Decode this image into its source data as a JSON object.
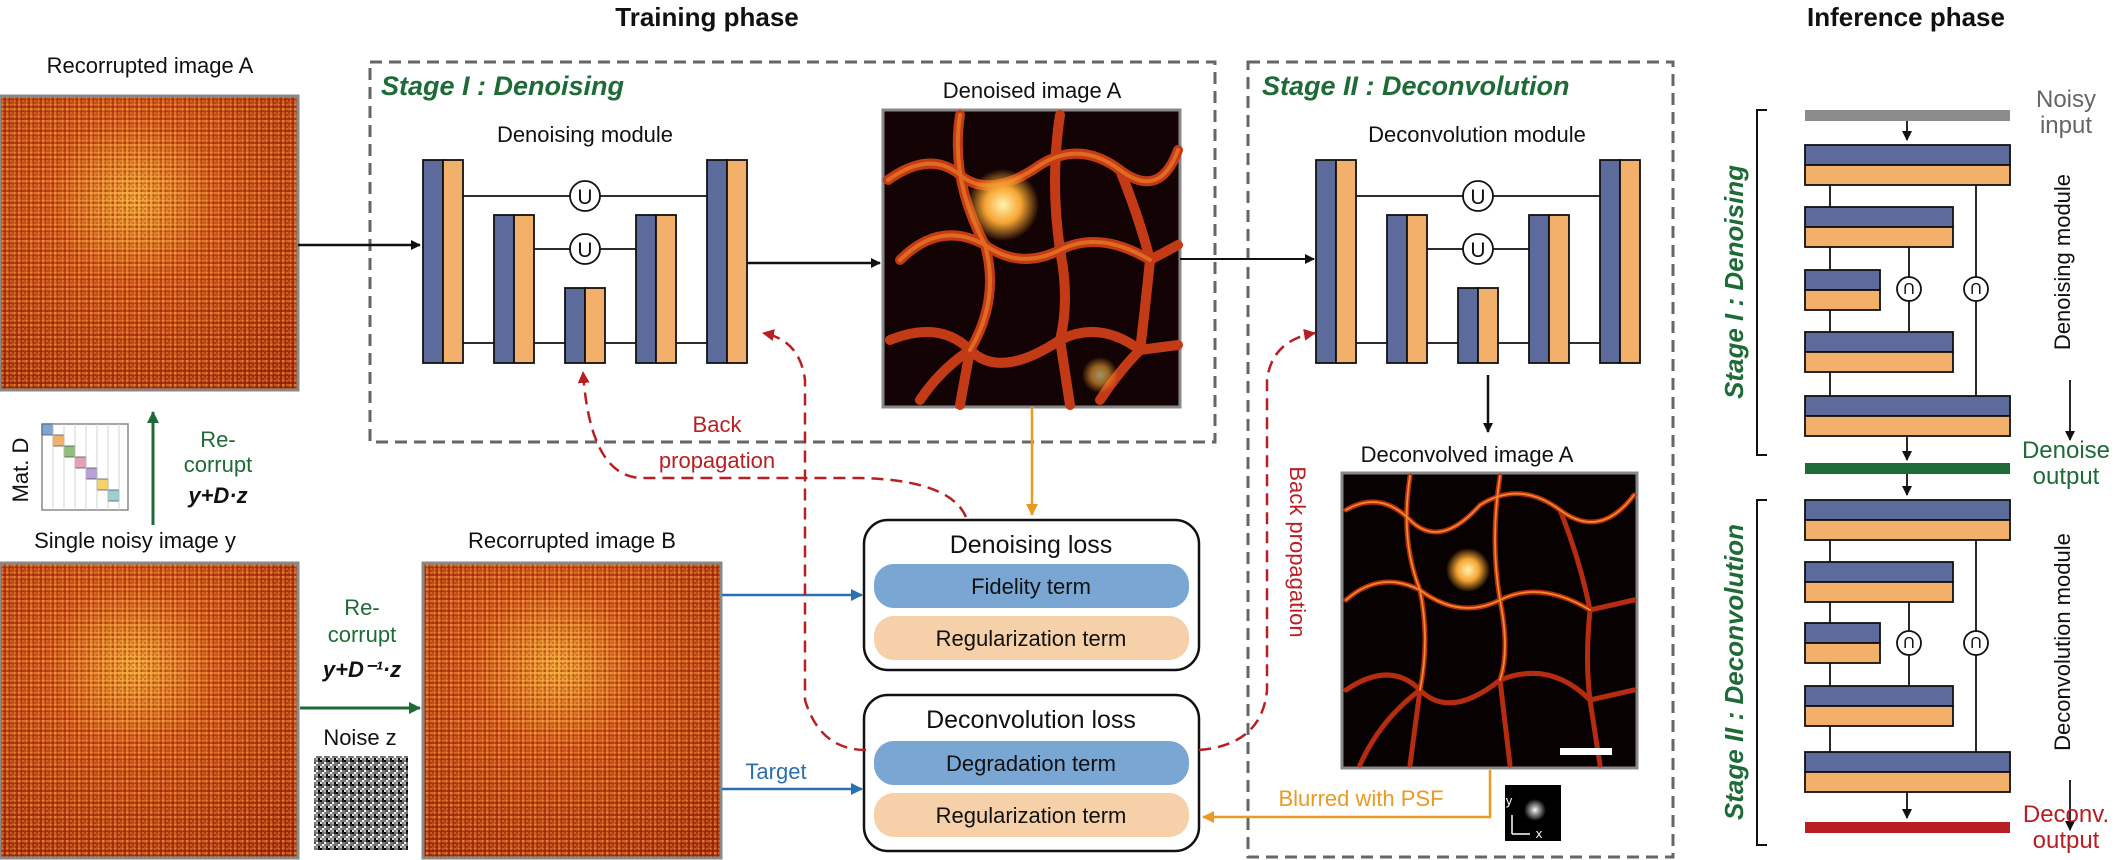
{
  "headers": {
    "training": "Training phase",
    "inference": "Inference phase"
  },
  "stage1": {
    "title": "Stage I : Denoising",
    "module": "Denoising module",
    "image": "Denoised image A"
  },
  "stage2": {
    "title": "Stage II : Deconvolution",
    "module": "Deconvolution module",
    "image": "Deconvolved image A"
  },
  "left": {
    "recorrupted_a": "Recorrupted image A",
    "mat_d": "Mat. D",
    "recorrupt_top_1": "Re-",
    "recorrupt_top_2": "corrupt",
    "recorrupt_top_formula": "y+D·z",
    "single_noisy": "Single noisy image y",
    "recorrupt_mid_1": "Re-",
    "recorrupt_mid_2": "corrupt",
    "recorrupt_mid_formula": "y+D⁻¹·z",
    "noise": "Noise z",
    "recorrupted_b": "Recorrupted image B"
  },
  "losses": {
    "denoising_title": "Denoising loss",
    "fidelity": "Fidelity term",
    "regularization1": "Regularization term",
    "deconv_title": "Deconvolution loss",
    "degradation": "Degradation term",
    "regularization2": "Regularization term"
  },
  "arrows": {
    "back_prop_1": "Back",
    "back_prop_2": "propagation",
    "back_prop_vertical": "Back propagation",
    "target": "Target",
    "blurred": "Blurred with PSF",
    "unet_symbol": "U",
    "psf_y": "y",
    "psf_x": "x"
  },
  "inference": {
    "noisy_1": "Noisy",
    "noisy_2": "input",
    "stage1": "Stage I : Denoising",
    "denoising_module": "Denoising module",
    "denoise_out_1": "Denoise",
    "denoise_out_2": "output",
    "stage2": "Stage II : Deconvolution",
    "deconv_module": "Deconvolution module",
    "deconv_out_1": "Deconv.",
    "deconv_out_2": "output"
  },
  "colors": {
    "blue_block": "#5c6a9c",
    "orange_block": "#f2b06b",
    "green": "#1e6b37",
    "red": "#b81f24",
    "loss_blue": "#7aa6d3",
    "loss_orange": "#f5d0a8",
    "arrow_blue": "#2a70b0",
    "arrow_orange": "#e89a23"
  }
}
